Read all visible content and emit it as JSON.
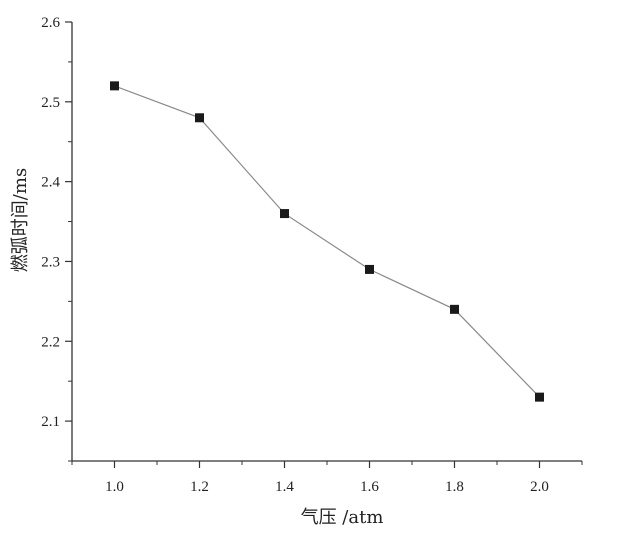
{
  "chart_data": {
    "type": "line",
    "title": "",
    "xlabel": "气压 /atm",
    "ylabel": "燃弧时间/ms",
    "x": [
      1.0,
      1.2,
      1.4,
      1.6,
      1.8,
      2.0
    ],
    "series": [
      {
        "values": [
          2.52,
          2.48,
          2.36,
          2.29,
          2.24,
          2.13
        ]
      }
    ],
    "xlim": [
      0.9,
      2.1
    ],
    "ylim": [
      2.05,
      2.6
    ],
    "x_ticks": [
      "1.0",
      "1.2",
      "1.4",
      "1.6",
      "1.8",
      "2.0"
    ],
    "y_ticks": [
      "2.1",
      "2.2",
      "2.3",
      "2.4",
      "2.5",
      "2.6"
    ],
    "grid": false,
    "legend": "none",
    "marker": "square",
    "colors": {
      "line": "#8a8a8a",
      "marker": "#1a1a1a",
      "axis": "#333333"
    }
  }
}
